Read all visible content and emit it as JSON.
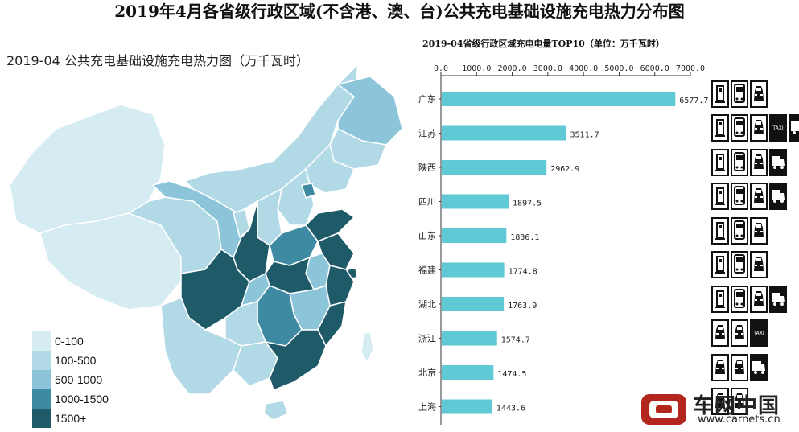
{
  "page": {
    "title": "2019年4月各省级行政区域(不含港、澳、台)公共充电基础设施充电热力分布图"
  },
  "map": {
    "title": "2019-04 公共充电基础设施充电热力图（万千瓦时）",
    "legend": [
      {
        "label": "0-100",
        "color": "#d6ecf3"
      },
      {
        "label": "100-500",
        "color": "#b2d9e6"
      },
      {
        "label": "500-1000",
        "color": "#8cc5d9"
      },
      {
        "label": "1000-1500",
        "color": "#3e8aa3"
      },
      {
        "label": "1500+",
        "color": "#1f5a69"
      }
    ]
  },
  "chart_data": {
    "type": "bar",
    "orientation": "horizontal",
    "title": "2019-04省级行政区域充电电量TOP10（单位：万千瓦时）",
    "categories": [
      "广东",
      "江苏",
      "陕西",
      "四川",
      "山东",
      "福建",
      "湖北",
      "浙江",
      "北京",
      "上海"
    ],
    "values": [
      6577.7,
      3511.7,
      2962.9,
      1897.5,
      1836.1,
      1774.8,
      1763.9,
      1574.7,
      1474.5,
      1443.6
    ],
    "value_labels": [
      "6577.7",
      "3511.7",
      "2962.9",
      "1897.5",
      "1836.1",
      "1774.8",
      "1763.9",
      "1574.7",
      "1474.5",
      "1443.6"
    ],
    "xlim": [
      0,
      7000
    ],
    "xticks": [
      "0.0",
      "1000.0",
      "2000.0",
      "3000.0",
      "4000.0",
      "5000.0",
      "6000.0",
      "7000.0"
    ],
    "axis_position": "top",
    "bar_color": "#5fcad6",
    "grid": false
  },
  "icons": {
    "rows": [
      [
        "charger-icon",
        "bus-icon",
        "car-icon"
      ],
      [
        "charger-icon",
        "bus-icon",
        "car-icon",
        "taxi-icon",
        "truck-icon"
      ],
      [
        "charger-icon",
        "bus-icon",
        "car-icon",
        "truck-icon"
      ],
      [
        "charger-icon",
        "bus-icon",
        "car-icon",
        "truck-icon"
      ],
      [
        "charger-icon",
        "bus-icon",
        "car-icon"
      ],
      [
        "charger-icon",
        "bus-icon",
        "car-icon"
      ],
      [
        "charger-icon",
        "bus-icon",
        "car-icon",
        "truck-icon"
      ],
      [
        "car-icon",
        "car-icon",
        "taxi-icon"
      ],
      [
        "car-icon",
        "car-icon",
        "truck-icon"
      ],
      [
        "car-icon",
        "car-icon"
      ]
    ],
    "taxi_text": "TAXI"
  },
  "watermark": {
    "name": "车网中国",
    "url": "www.carnets.cn"
  }
}
